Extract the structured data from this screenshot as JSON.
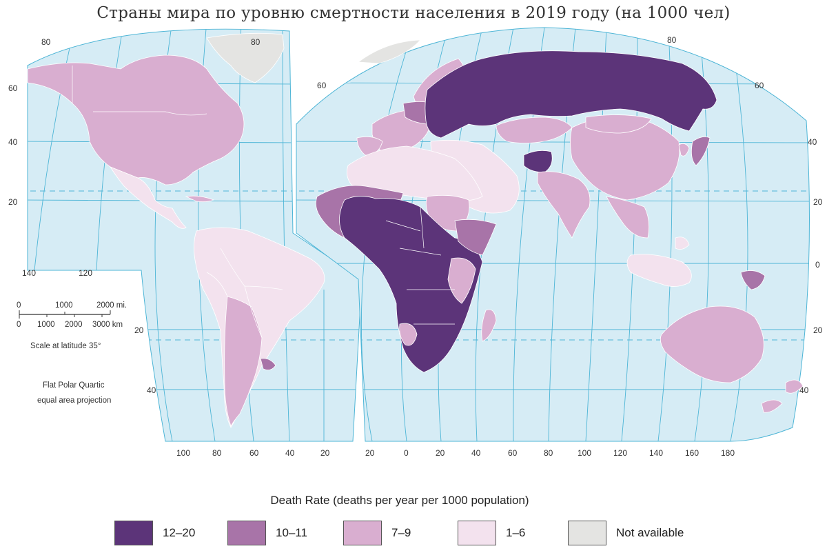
{
  "title": "Страны мира по уровню смертности населения в 2019 году (на 1000 чел)",
  "colors": {
    "ocean": "#d6ecf5",
    "grid": "#4db5d6",
    "rate_12_20": "#5c3479",
    "rate_10_11": "#a874a8",
    "rate_7_9": "#d9aed0",
    "rate_1_6": "#f3e2ee",
    "not_available": "#e4e4e2"
  },
  "scale": {
    "miles_ticks": [
      "0",
      "1000",
      "2000 mi."
    ],
    "km_ticks": [
      "0",
      "1000",
      "2000",
      "3000 km"
    ],
    "caption": "Scale at latitude 35°"
  },
  "projection": {
    "line1": "Flat Polar Quartic",
    "line2": "equal area projection"
  },
  "labels": {
    "west_lon_bottom": [
      "100",
      "80",
      "60",
      "40",
      "20"
    ],
    "east_lon_bottom": [
      "20",
      "0",
      "20",
      "40",
      "60",
      "80",
      "100",
      "120",
      "140",
      "160",
      "180"
    ],
    "west_lon_top": [
      "80",
      "80"
    ],
    "west_lon_side": [
      "140",
      "120"
    ],
    "west_lat": [
      "60",
      "40",
      "20",
      "20",
      "40"
    ],
    "east_lat_left": [
      "60"
    ],
    "east_lat_right": [
      "60",
      "40",
      "20",
      "0",
      "20",
      "40"
    ],
    "east_lon_top": [
      "80"
    ]
  },
  "legend": {
    "title": "Death Rate (deaths per year per 1000 population)",
    "items": [
      {
        "label": "12–20",
        "color": "#5c3479"
      },
      {
        "label": "10–11",
        "color": "#a874a8"
      },
      {
        "label": "7–9",
        "color": "#d9aed0"
      },
      {
        "label": "1–6",
        "color": "#f3e2ee"
      },
      {
        "label": "Not available",
        "color": "#e4e4e2"
      }
    ]
  }
}
